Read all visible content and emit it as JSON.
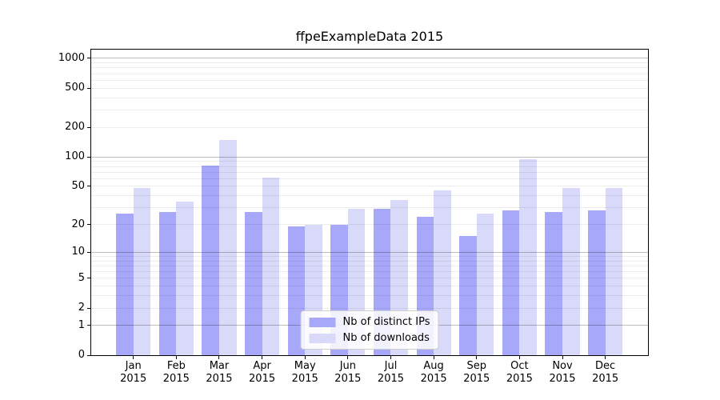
{
  "chart_data": {
    "type": "bar",
    "title": "ffpeExampleData 2015",
    "categories": [
      "Jan",
      "Feb",
      "Mar",
      "Apr",
      "May",
      "Jun",
      "Jul",
      "Aug",
      "Sep",
      "Oct",
      "Nov",
      "Dec"
    ],
    "x_sublabel": "2015",
    "series": [
      {
        "name": "Nb of distinct IPs",
        "color": "#a8a8fa",
        "values": [
          26,
          27,
          81,
          27,
          19,
          20,
          29,
          24,
          15,
          28,
          27,
          28
        ]
      },
      {
        "name": "Nb of downloads",
        "color": "#d9d9fa",
        "values": [
          48,
          35,
          150,
          62,
          20,
          29,
          36,
          45,
          26,
          94,
          48,
          48
        ]
      }
    ],
    "yscale": "log1p",
    "yticks": [
      0,
      1,
      2,
      5,
      10,
      20,
      50,
      100,
      200,
      500,
      1000
    ],
    "ylim": [
      0,
      1230
    ],
    "grid": true,
    "legend_position": "lower center",
    "colors": {
      "major_grid": "#bdbdbd",
      "minor_grid": "#ececec",
      "axis": "#000000",
      "background": "#ffffff"
    }
  }
}
